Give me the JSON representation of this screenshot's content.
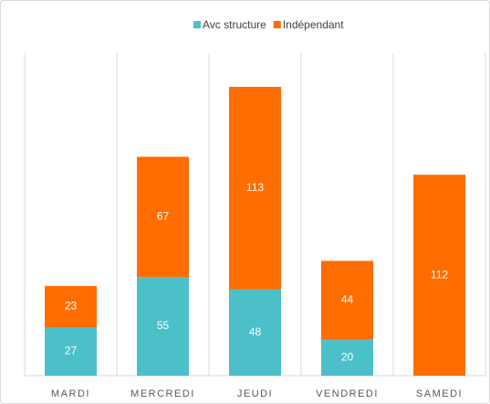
{
  "chart_data": {
    "type": "stacked_bar",
    "categories": [
      "MARDI",
      "MERCREDI",
      "JEUDI",
      "VENDREDI",
      "SAMEDI"
    ],
    "series": [
      {
        "name": "Avc structure",
        "color": "#4bc0c8",
        "values": [
          27,
          55,
          48,
          20,
          null
        ]
      },
      {
        "name": "Indépendant",
        "color": "#ff6d00",
        "values": [
          23,
          67,
          113,
          44,
          112
        ]
      }
    ],
    "legend": "top",
    "grid": "vertical"
  }
}
